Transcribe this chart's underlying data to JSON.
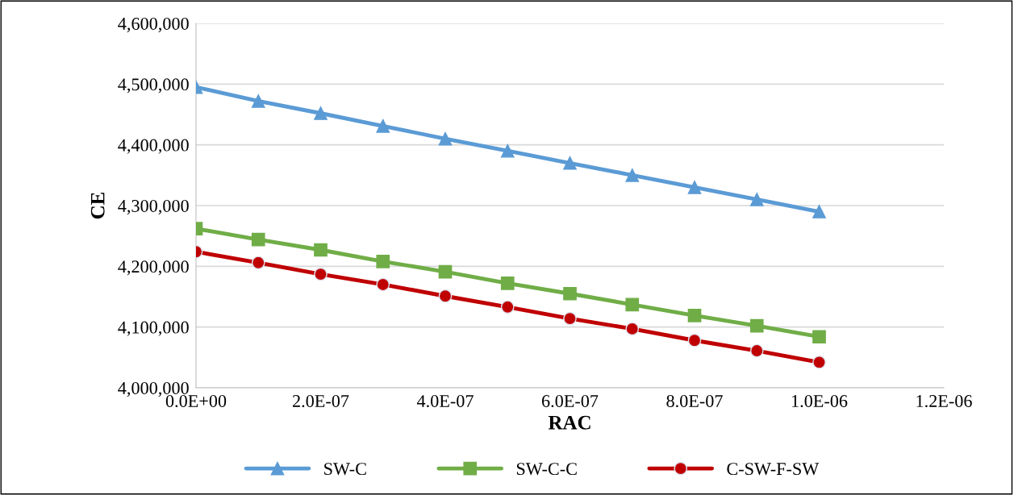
{
  "chart_data": {
    "type": "line",
    "xlabel": "RAC",
    "ylabel": "CE",
    "x": [
      0,
      1e-07,
      2e-07,
      3e-07,
      4e-07,
      5e-07,
      6e-07,
      7e-07,
      8e-07,
      9e-07,
      1e-06
    ],
    "series": [
      {
        "name": "SW-C",
        "color": "#5b9bd5",
        "marker": "triangle",
        "values": [
          4495000,
          4472000,
          4452000,
          4431000,
          4410000,
          4390000,
          4370000,
          4350000,
          4330000,
          4310000,
          4290000
        ]
      },
      {
        "name": "SW-C-C",
        "color": "#70ad47",
        "marker": "square",
        "values": [
          4262000,
          4244000,
          4227000,
          4208000,
          4191000,
          4172000,
          4155000,
          4137000,
          4119000,
          4102000,
          4084000
        ]
      },
      {
        "name": "C-SW-F-SW",
        "color": "#c00000",
        "marker": "circle",
        "values": [
          4224000,
          4206000,
          4187000,
          4170000,
          4151000,
          4133000,
          4114000,
          4097000,
          4078000,
          4061000,
          4042000
        ]
      }
    ],
    "xlim": [
      0,
      1.2e-06
    ],
    "xticks": [
      {
        "value": 0,
        "label": "0.0E+00"
      },
      {
        "value": 2e-07,
        "label": "2.0E-07"
      },
      {
        "value": 4e-07,
        "label": "4.0E-07"
      },
      {
        "value": 6e-07,
        "label": "6.0E-07"
      },
      {
        "value": 8e-07,
        "label": "8.0E-07"
      },
      {
        "value": 1e-06,
        "label": "1.0E-06"
      },
      {
        "value": 1.2e-06,
        "label": "1.2E-06"
      }
    ],
    "ylim": [
      4000000,
      4600000
    ],
    "yticks": [
      {
        "value": 4000000,
        "label": "4,000,000"
      },
      {
        "value": 4100000,
        "label": "4,100,000"
      },
      {
        "value": 4200000,
        "label": "4,200,000"
      },
      {
        "value": 4300000,
        "label": "4,300,000"
      },
      {
        "value": 4400000,
        "label": "4,400,000"
      },
      {
        "value": 4500000,
        "label": "4,500,000"
      },
      {
        "value": 4600000,
        "label": "4,600,000"
      }
    ],
    "grid": "y",
    "legend": "bottom",
    "line_style": "solid"
  }
}
